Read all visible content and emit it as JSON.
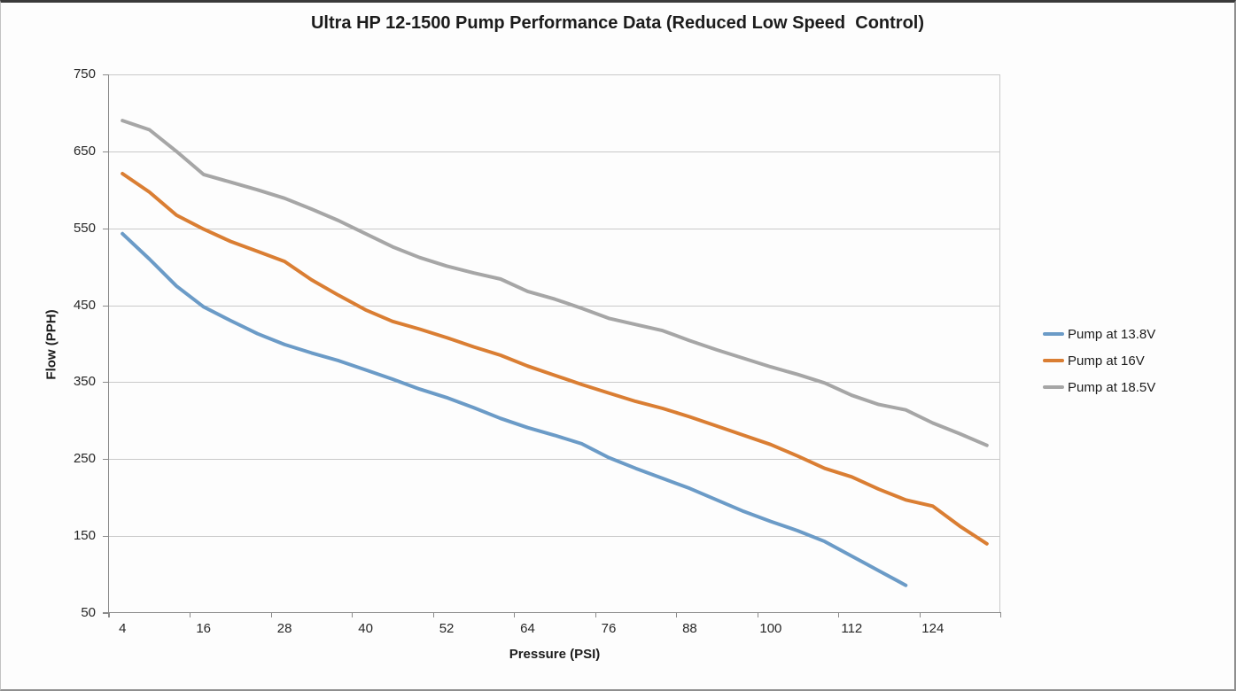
{
  "title": "Ultra HP 12-1500 Pump Performance Data (Reduced Low Speed  Control)",
  "chart_data": {
    "type": "line",
    "title": "Ultra HP 12-1500 Pump Performance Data (Reduced Low Speed  Control)",
    "xlabel": "Pressure (PSI)",
    "ylabel": "Flow (PPH)",
    "xlim": [
      2,
      134
    ],
    "ylim": [
      50,
      750
    ],
    "x_ticks": [
      4,
      16,
      28,
      40,
      52,
      64,
      76,
      88,
      100,
      112,
      124
    ],
    "y_ticks": [
      50,
      150,
      250,
      350,
      450,
      550,
      650,
      750
    ],
    "grid": "horizontal",
    "legend_position": "right",
    "x": [
      4,
      8,
      12,
      16,
      20,
      24,
      28,
      32,
      36,
      40,
      44,
      48,
      52,
      56,
      60,
      64,
      68,
      72,
      76,
      80,
      84,
      88,
      92,
      96,
      100,
      104,
      108,
      112,
      116,
      120,
      124,
      128,
      132
    ],
    "series": [
      {
        "name": "Pump at 13.8V",
        "color": "#6b9bc7",
        "values": [
          543,
          510,
          475,
          448,
          430,
          413,
          399,
          388,
          378,
          366,
          354,
          341,
          330,
          317,
          303,
          291,
          281,
          270,
          252,
          238,
          225,
          212,
          197,
          182,
          169,
          157,
          143,
          124,
          105,
          86
        ]
      },
      {
        "name": "Pump at 16V",
        "color": "#da7e33",
        "values": [
          621,
          597,
          567,
          549,
          533,
          520,
          507,
          483,
          463,
          444,
          429,
          419,
          408,
          396,
          385,
          371,
          359,
          347,
          336,
          325,
          316,
          305,
          293,
          281,
          269,
          254,
          238,
          227,
          211,
          197,
          189,
          163,
          140
        ]
      },
      {
        "name": "Pump at 18.5V",
        "color": "#a6a6a6",
        "values": [
          690,
          678,
          650,
          620,
          610,
          600,
          589,
          575,
          560,
          543,
          526,
          512,
          501,
          492,
          484,
          468,
          458,
          446,
          433,
          425,
          417,
          404,
          392,
          381,
          370,
          360,
          349,
          333,
          321,
          314,
          297,
          283,
          268
        ]
      }
    ],
    "styles": {
      "grid_color": "#c9c9c9",
      "axis_color": "#8a8a8a",
      "text_color": "#262626",
      "line_width": 4
    }
  }
}
